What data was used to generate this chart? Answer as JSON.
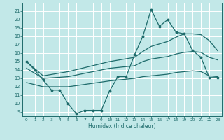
{
  "xlabel": "Humidex (Indice chaleur)",
  "bg_color": "#c2e8e8",
  "grid_color": "#ffffff",
  "line_color": "#1e6b6b",
  "xlim": [
    -0.5,
    23.5
  ],
  "ylim": [
    8.5,
    22.0
  ],
  "yticks": [
    9,
    10,
    11,
    12,
    13,
    14,
    15,
    16,
    17,
    18,
    19,
    20,
    21
  ],
  "xticks": [
    0,
    1,
    2,
    3,
    4,
    5,
    6,
    7,
    8,
    9,
    10,
    11,
    12,
    13,
    14,
    15,
    16,
    17,
    18,
    19,
    20,
    21,
    22,
    23
  ],
  "line1_x": [
    0,
    1,
    2,
    3,
    4,
    5,
    6,
    7,
    8,
    9,
    10,
    11,
    12,
    13,
    14,
    15,
    16,
    17,
    18,
    19,
    20,
    21,
    22,
    23
  ],
  "line1_y": [
    15.0,
    14.0,
    12.8,
    11.6,
    11.6,
    10.0,
    8.8,
    9.2,
    9.2,
    9.2,
    11.5,
    13.2,
    13.2,
    15.8,
    18.0,
    21.2,
    19.2,
    20.0,
    18.5,
    18.3,
    16.3,
    15.5,
    13.1,
    13.1
  ],
  "line2_x": [
    0,
    2,
    5,
    10,
    13,
    14,
    15,
    17,
    18,
    19,
    20,
    21,
    22,
    23
  ],
  "line2_y": [
    15.0,
    13.3,
    13.8,
    15.0,
    15.5,
    16.2,
    16.8,
    17.4,
    17.9,
    18.3,
    18.3,
    18.2,
    17.5,
    16.3
  ],
  "line3_x": [
    0,
    2,
    5,
    10,
    13,
    14,
    15,
    17,
    18,
    19,
    20,
    21,
    22,
    23
  ],
  "line3_y": [
    14.2,
    13.0,
    13.2,
    14.2,
    14.5,
    15.0,
    15.3,
    15.6,
    15.9,
    16.1,
    16.2,
    16.1,
    15.5,
    15.2
  ],
  "line4_x": [
    0,
    2,
    5,
    10,
    13,
    14,
    15,
    17,
    18,
    19,
    20,
    21,
    22,
    23
  ],
  "line4_y": [
    12.5,
    12.0,
    12.0,
    12.7,
    13.0,
    13.2,
    13.3,
    13.5,
    13.7,
    13.8,
    13.9,
    13.8,
    13.3,
    13.2
  ]
}
